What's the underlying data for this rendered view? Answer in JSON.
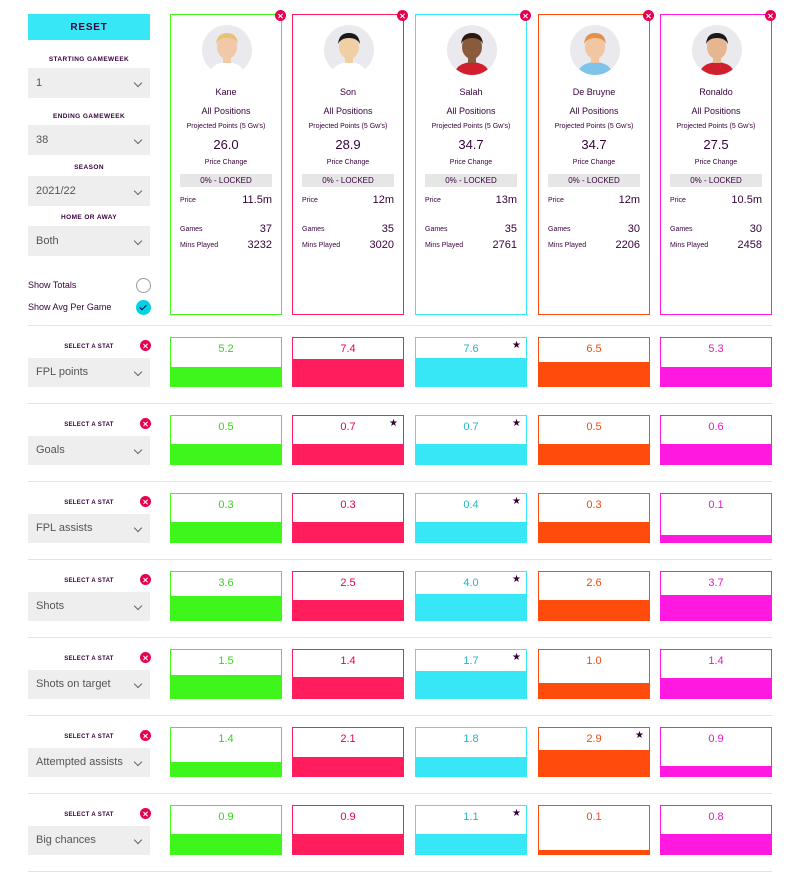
{
  "sidebar": {
    "reset_label": "RESET",
    "starting_gameweek": {
      "label": "STARTING GAMEWEEK",
      "value": "1"
    },
    "ending_gameweek": {
      "label": "ENDING GAMEWEEK",
      "value": "38"
    },
    "season": {
      "label": "SEASON",
      "value": "2021/22"
    },
    "home_away": {
      "label": "HOME OR AWAY",
      "value": "Both"
    },
    "show_totals": {
      "label": "Show Totals",
      "checked": false
    },
    "show_avg": {
      "label": "Show Avg Per Game",
      "checked": true
    }
  },
  "colors": {
    "accent": "#38e7f6",
    "navy": "#37003c",
    "remove": "#e90052"
  },
  "players": [
    {
      "name": "Kane",
      "position": "All Positions",
      "proj_label": "Projected Points (5 Gw's)",
      "proj_value": "26.0",
      "price_change_label": "Price Change",
      "price_change_value": "0% - LOCKED",
      "price_label": "Price",
      "price_value": "11.5m",
      "games_label": "Games",
      "games_value": "37",
      "mins_label": "Mins Played",
      "mins_value": "3232",
      "color": "#3ef51c",
      "text_color": "#37d31c",
      "shirt": "#ffffff",
      "skin": "#f2c9a8",
      "hair": "#e8c27a"
    },
    {
      "name": "Son",
      "position": "All Positions",
      "proj_label": "Projected Points (5 Gw's)",
      "proj_value": "28.9",
      "price_change_label": "Price Change",
      "price_change_value": "0% - LOCKED",
      "price_label": "Price",
      "price_value": "12m",
      "games_label": "Games",
      "games_value": "35",
      "mins_label": "Mins Played",
      "mins_value": "3020",
      "color": "#ff1d5e",
      "text_color": "#e90052",
      "shirt": "#ffffff",
      "skin": "#f0cfa5",
      "hair": "#1a1a1a"
    },
    {
      "name": "Salah",
      "position": "All Positions",
      "proj_label": "Projected Points (5 Gw's)",
      "proj_value": "34.7",
      "price_change_label": "Price Change",
      "price_change_value": "0% - LOCKED",
      "price_label": "Price",
      "price_value": "13m",
      "games_label": "Games",
      "games_value": "35",
      "mins_label": "Mins Played",
      "mins_value": "2761",
      "color": "#38e7f6",
      "text_color": "#1fb6c9",
      "shirt": "#d0202e",
      "skin": "#8a5a3c",
      "hair": "#2a1a12"
    },
    {
      "name": "De Bruyne",
      "position": "All Positions",
      "proj_label": "Projected Points (5 Gw's)",
      "proj_value": "34.7",
      "price_change_label": "Price Change",
      "price_change_value": "0% - LOCKED",
      "price_label": "Price",
      "price_value": "12m",
      "games_label": "Games",
      "games_value": "30",
      "mins_label": "Mins Played",
      "mins_value": "2206",
      "color": "#ff4b0b",
      "text_color": "#f04a10",
      "shirt": "#7ec3ea",
      "skin": "#f1c6a2",
      "hair": "#e3904a"
    },
    {
      "name": "Ronaldo",
      "position": "All Positions",
      "proj_label": "Projected Points (5 Gw's)",
      "proj_value": "27.5",
      "price_change_label": "Price Change",
      "price_change_value": "0% - LOCKED",
      "price_label": "Price",
      "price_value": "10.5m",
      "games_label": "Games",
      "games_value": "30",
      "mins_label": "Mins Played",
      "mins_value": "2458",
      "color": "#ff18e0",
      "text_color": "#e617c8",
      "shirt": "#d0202e",
      "skin": "#e6b690",
      "hair": "#1a1a1a"
    }
  ],
  "stats": [
    {
      "select_label": "SELECT A STAT",
      "stat": "FPL points",
      "values": [
        "5.2",
        "7.4",
        "7.6",
        "6.5",
        "5.3"
      ],
      "fills": [
        0.4,
        0.56,
        0.58,
        0.5,
        0.4
      ],
      "star_index": 2
    },
    {
      "select_label": "SELECT A STAT",
      "stat": "Goals",
      "values": [
        "0.5",
        "0.7",
        "0.7",
        "0.5",
        "0.6"
      ],
      "fills": [
        0.42,
        0.42,
        0.42,
        0.42,
        0.42
      ],
      "star_index": [
        1,
        2
      ]
    },
    {
      "select_label": "SELECT A STAT",
      "stat": "FPL assists",
      "values": [
        "0.3",
        "0.3",
        "0.4",
        "0.3",
        "0.1"
      ],
      "fills": [
        0.42,
        0.42,
        0.42,
        0.42,
        0.14
      ],
      "star_index": 2
    },
    {
      "select_label": "SELECT A STAT",
      "stat": "Shots",
      "values": [
        "3.6",
        "2.5",
        "4.0",
        "2.6",
        "3.7"
      ],
      "fills": [
        0.5,
        0.42,
        0.55,
        0.42,
        0.52
      ],
      "star_index": 2
    },
    {
      "select_label": "SELECT A STAT",
      "stat": "Shots on target",
      "values": [
        "1.5",
        "1.4",
        "1.7",
        "1.0",
        "1.4"
      ],
      "fills": [
        0.48,
        0.44,
        0.56,
        0.32,
        0.42
      ],
      "star_index": 2
    },
    {
      "select_label": "SELECT A STAT",
      "stat": "Attempted assists",
      "values": [
        "1.4",
        "2.1",
        "1.8",
        "2.9",
        "0.9"
      ],
      "fills": [
        0.3,
        0.4,
        0.4,
        0.55,
        0.2
      ],
      "star_index": 3
    },
    {
      "select_label": "SELECT A STAT",
      "stat": "Big chances",
      "values": [
        "0.9",
        "0.9",
        "1.1",
        "0.1",
        "0.8"
      ],
      "fills": [
        0.42,
        0.42,
        0.42,
        0.08,
        0.42
      ],
      "star_index": 2
    }
  ]
}
